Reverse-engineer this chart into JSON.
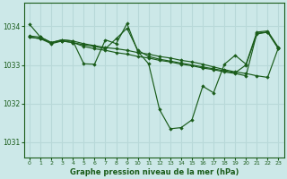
{
  "bg_color": "#cce8e8",
  "grid_color": "#b0d0d0",
  "line_color": "#1a5c1a",
  "marker_color": "#1a5c1a",
  "title": "Graphe pression niveau de la mer (hPa)",
  "xlim": [
    -0.5,
    23.5
  ],
  "ylim": [
    1030.6,
    1034.6
  ],
  "yticks": [
    1031,
    1032,
    1033,
    1034
  ],
  "xticks": [
    0,
    1,
    2,
    3,
    4,
    5,
    6,
    7,
    8,
    9,
    10,
    11,
    12,
    13,
    14,
    15,
    16,
    17,
    18,
    19,
    20,
    21,
    22,
    23
  ],
  "series": [
    {
      "x": [
        0,
        1,
        2,
        3,
        4,
        5,
        6,
        7,
        8,
        9,
        10,
        11,
        12,
        13,
        14,
        15,
        16,
        17,
        18,
        19,
        20,
        21,
        22,
        23
      ],
      "y": [
        1034.05,
        1033.72,
        1033.58,
        1033.65,
        1033.62,
        1033.03,
        1033.02,
        1033.65,
        1033.55,
        1034.07,
        1033.35,
        1033.03,
        1031.85,
        1031.35,
        1031.38,
        1031.58,
        1032.45,
        1032.28,
        1033.02,
        1033.25,
        1033.02,
        1033.85,
        1033.88,
        1033.45
      ]
    },
    {
      "x": [
        0,
        1,
        2,
        3,
        4,
        5,
        6,
        7,
        8,
        9,
        10,
        11,
        12,
        13,
        14,
        15,
        16,
        17,
        18,
        19,
        20,
        21,
        22,
        23
      ],
      "y": [
        1033.75,
        1033.72,
        1033.58,
        1033.65,
        1033.62,
        1033.55,
        1033.5,
        1033.45,
        1033.42,
        1033.38,
        1033.32,
        1033.28,
        1033.22,
        1033.18,
        1033.12,
        1033.08,
        1033.02,
        1032.95,
        1032.88,
        1032.82,
        1032.78,
        1032.72,
        1032.68,
        1033.45
      ]
    },
    {
      "x": [
        0,
        1,
        2,
        3,
        4,
        5,
        6,
        7,
        8,
        9,
        10,
        11,
        12,
        13,
        14,
        15,
        16,
        17,
        18,
        19,
        20,
        21,
        22,
        23
      ],
      "y": [
        1033.72,
        1033.68,
        1033.55,
        1033.62,
        1033.58,
        1033.48,
        1033.42,
        1033.38,
        1033.32,
        1033.28,
        1033.22,
        1033.18,
        1033.12,
        1033.08,
        1033.02,
        1032.98,
        1032.92,
        1032.88,
        1032.82,
        1032.78,
        1032.72,
        1033.82,
        1033.85,
        1033.42
      ]
    },
    {
      "x": [
        0,
        1,
        2,
        3,
        4,
        5,
        6,
        7,
        8,
        9,
        10,
        11,
        12,
        13,
        14,
        15,
        16,
        17,
        18,
        19,
        20,
        21,
        22,
        23
      ],
      "y": [
        1033.72,
        1033.68,
        1033.58,
        1033.62,
        1033.58,
        1033.52,
        1033.48,
        1033.42,
        1033.68,
        1033.95,
        1033.38,
        1033.22,
        1033.15,
        1033.1,
        1033.05,
        1033.0,
        1032.95,
        1032.9,
        1032.85,
        1032.8,
        1033.0,
        1033.8,
        1033.85,
        1033.42
      ]
    }
  ]
}
